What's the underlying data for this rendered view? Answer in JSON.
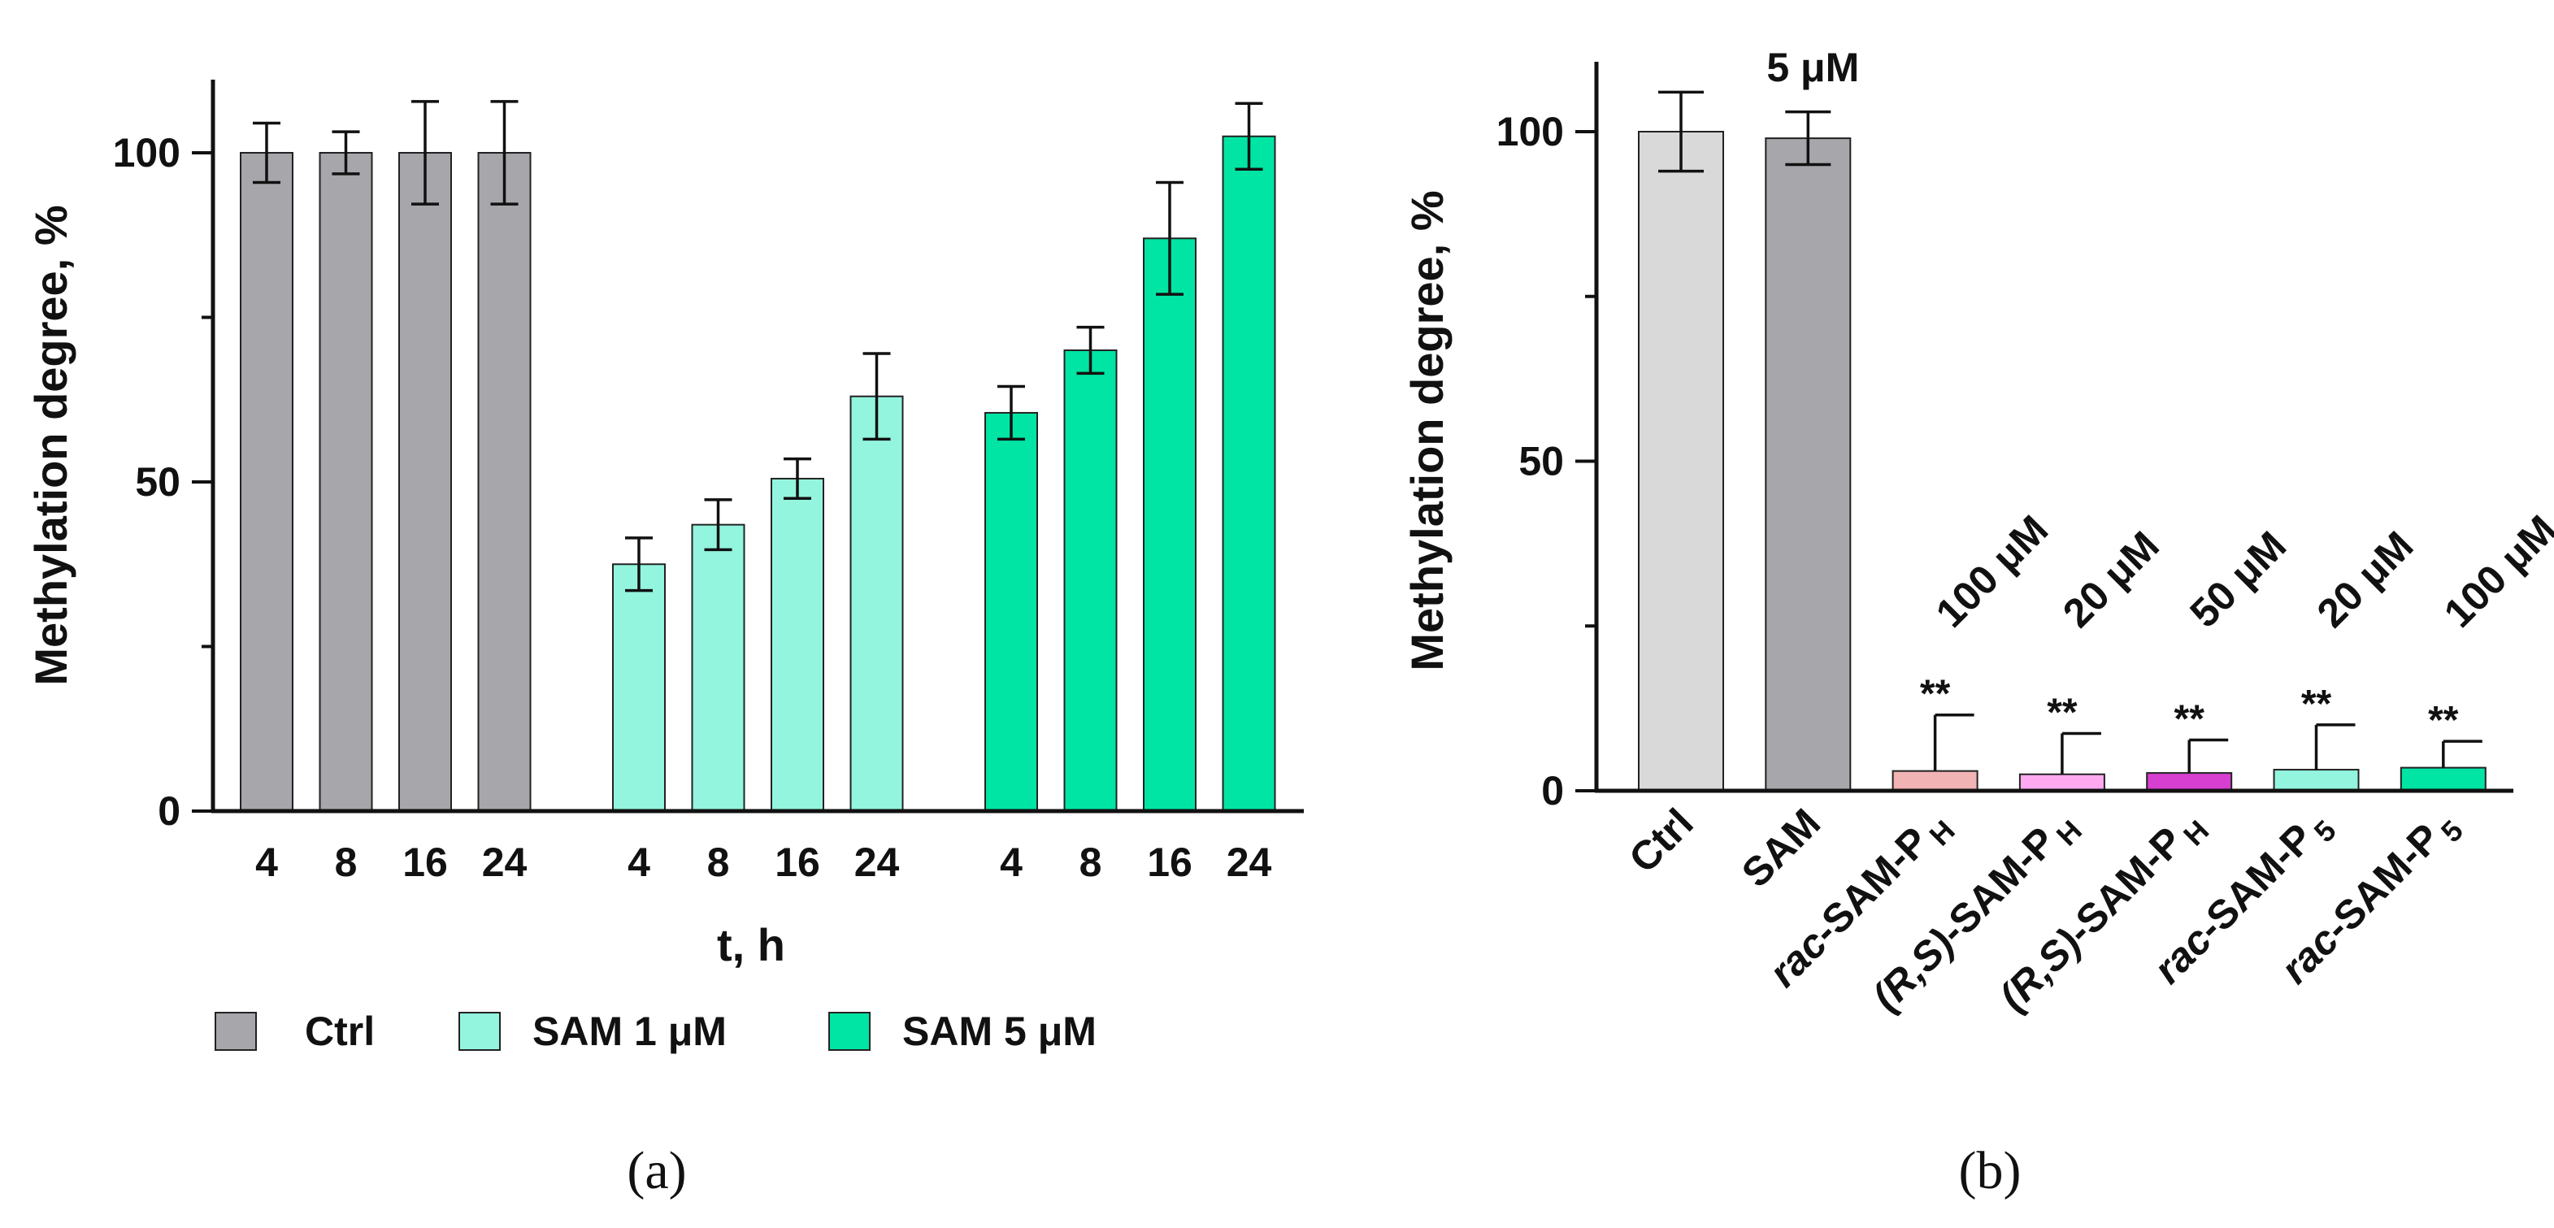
{
  "chart_data": [
    {
      "type": "bar",
      "panel_label": "(a)",
      "ylabel": "Methylation degree, %",
      "xlabel": "t, h",
      "ylim": [
        0,
        110
      ],
      "yticks": [
        0,
        50,
        100
      ],
      "yticks_minor": [
        25,
        75
      ],
      "categories": [
        "4",
        "8",
        "16",
        "24"
      ],
      "legend_position": "bottom",
      "series": [
        {
          "name": "Ctrl",
          "color": "#a6a6ab",
          "values": [
            100,
            100,
            100,
            100
          ],
          "errors": [
            4.5,
            3.2,
            7.8,
            7.8
          ]
        },
        {
          "name": "SAM 1 μM",
          "color": "#93f5de",
          "values": [
            37.5,
            43.5,
            50.5,
            63
          ],
          "errors": [
            4,
            3.8,
            3,
            6.5
          ]
        },
        {
          "name": "SAM 5 μM",
          "color": "#00e5a4",
          "values": [
            60.5,
            70,
            87,
            102.5
          ],
          "errors": [
            4,
            3.5,
            8.5,
            5
          ]
        }
      ]
    },
    {
      "type": "bar",
      "panel_label": "(b)",
      "ylabel": "Methylation degree, %",
      "ylim": [
        0,
        110
      ],
      "yticks": [
        0,
        50,
        100
      ],
      "yticks_minor": [
        25,
        75
      ],
      "bars": [
        {
          "label": "Ctrl",
          "label_sub": "",
          "color": "#d9d9d9",
          "value": 100,
          "error": 6,
          "concentration": "",
          "significance": ""
        },
        {
          "label": "SAM",
          "label_sub": "",
          "color": "#a6a6ab",
          "value": 99,
          "error": 4,
          "concentration": "5 μM",
          "significance": ""
        },
        {
          "label_italic": "rac",
          "label_rest": "-SAM-P",
          "label_sub": "H",
          "color": "#f1b3b4",
          "value": 3,
          "error": 8.5,
          "concentration": "100 μM",
          "significance": "**"
        },
        {
          "label_italic": "(R,S)",
          "label_rest": "-SAM-P",
          "label_sub": "H",
          "color": "#ffaaf0",
          "value": 2.5,
          "error": 6.2,
          "concentration": "20 μM",
          "significance": "**"
        },
        {
          "label_italic": "(R,S)",
          "label_rest": "-SAM-P",
          "label_sub": "H",
          "color": "#d63fcf",
          "value": 2.7,
          "error": 5,
          "concentration": "50 μM",
          "significance": "**"
        },
        {
          "label_italic": "rac",
          "label_rest": "-SAM-P",
          "label_sub": "5",
          "color": "#93f5de",
          "value": 3.2,
          "error": 6.8,
          "concentration": "20 μM",
          "significance": "**"
        },
        {
          "label_italic": "rac",
          "label_rest": "-SAM-P",
          "label_sub": "5",
          "color": "#00e5a4",
          "value": 3.5,
          "error": 4,
          "concentration": "100 μM",
          "significance": "**"
        }
      ]
    }
  ]
}
